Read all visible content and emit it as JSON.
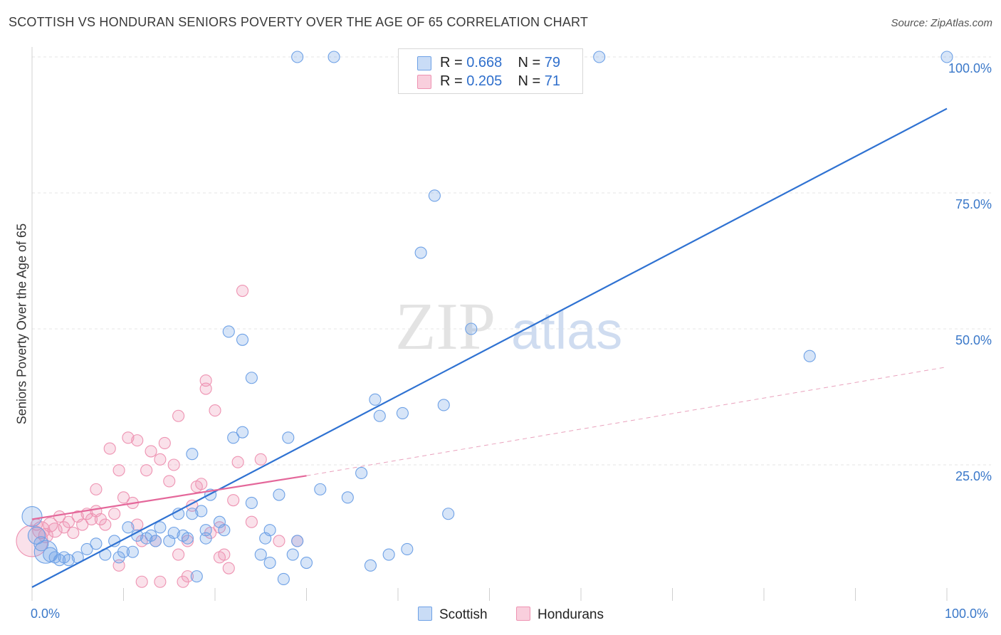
{
  "title": "SCOTTISH VS HONDURAN SENIORS POVERTY OVER THE AGE OF 65 CORRELATION CHART",
  "source": "Source: ZipAtlas.com",
  "watermark": {
    "zip": "ZIP",
    "atlas": "atlas"
  },
  "legend": {
    "rows": [
      {
        "r_label": "R = ",
        "r_value": "0.668",
        "n_label": "N = ",
        "n_value": "79",
        "color": "#6ea1e6"
      },
      {
        "r_label": "R = ",
        "r_value": "0.205",
        "n_label": "N = ",
        "n_value": "71",
        "color": "#ee93b2"
      }
    ]
  },
  "bottom_legend": {
    "scottish": "Scottish",
    "hondurans": "Hondurans"
  },
  "chart_data": {
    "type": "scatter",
    "xlabel": "",
    "ylabel": "Seniors Poverty Over the Age of 65",
    "xlim": [
      0,
      100
    ],
    "ylim": [
      0,
      100
    ],
    "x_tick_labels": {
      "min": "0.0%",
      "max": "100.0%"
    },
    "y_ticks": [
      25,
      50,
      75,
      100
    ],
    "y_tick_labels": [
      "25.0%",
      "50.0%",
      "75.0%",
      "100.0%"
    ],
    "grid": true,
    "legend_position": "top-center",
    "series": [
      {
        "name": "Scottish",
        "color": "#6ea1e6",
        "trend": {
          "x0": 0,
          "y0": 2.5,
          "x1": 100,
          "y1": 90.5,
          "style": "solid"
        },
        "points": [
          [
            0,
            15.5,
            14
          ],
          [
            0.5,
            12,
            12
          ],
          [
            1,
            10.5,
            10
          ],
          [
            1.5,
            9,
            16
          ],
          [
            2,
            8.5,
            10
          ],
          [
            2.5,
            8,
            8
          ],
          [
            3,
            7.5,
            8
          ],
          [
            3.5,
            8,
            8
          ],
          [
            4,
            7.5,
            8
          ],
          [
            5,
            8,
            8
          ],
          [
            6,
            9.5,
            8
          ],
          [
            7,
            10.5,
            8
          ],
          [
            8,
            8.5,
            8
          ],
          [
            9,
            11,
            8
          ],
          [
            9.5,
            8,
            8
          ],
          [
            10,
            9,
            8
          ],
          [
            10.5,
            13.5,
            8
          ],
          [
            11,
            9,
            8
          ],
          [
            11.5,
            12,
            8
          ],
          [
            12.5,
            11.5,
            8
          ],
          [
            13,
            12,
            8
          ],
          [
            13.5,
            11,
            8
          ],
          [
            14,
            13.5,
            8
          ],
          [
            15,
            11,
            8
          ],
          [
            15.5,
            12.5,
            8
          ],
          [
            16,
            16,
            8
          ],
          [
            16.5,
            12,
            8
          ],
          [
            17,
            11.5,
            8
          ],
          [
            17.5,
            16,
            8
          ],
          [
            17.5,
            27,
            8
          ],
          [
            18,
            4.5,
            8
          ],
          [
            18.5,
            16.5,
            8
          ],
          [
            19,
            13,
            8
          ],
          [
            19,
            11.5,
            8
          ],
          [
            19.5,
            19.5,
            8
          ],
          [
            20.5,
            14.5,
            8
          ],
          [
            21,
            13,
            8
          ],
          [
            21.5,
            49.5,
            8
          ],
          [
            22,
            30,
            8
          ],
          [
            23,
            48,
            8
          ],
          [
            23,
            31,
            8
          ],
          [
            24,
            41,
            8
          ],
          [
            24,
            18,
            8
          ],
          [
            25,
            8.5,
            8
          ],
          [
            25.5,
            11.5,
            8
          ],
          [
            26,
            13,
            8
          ],
          [
            26,
            7,
            8
          ],
          [
            27,
            19.5,
            8
          ],
          [
            27.5,
            4,
            8
          ],
          [
            28,
            30,
            8
          ],
          [
            28.5,
            8.5,
            8
          ],
          [
            29,
            11,
            8
          ],
          [
            30,
            7,
            8
          ],
          [
            31.5,
            20.5,
            8
          ],
          [
            33,
            100,
            8
          ],
          [
            34.5,
            19,
            8
          ],
          [
            36,
            23.5,
            8
          ],
          [
            37.5,
            37,
            8
          ],
          [
            38,
            34,
            8
          ],
          [
            39,
            8.5,
            8
          ],
          [
            40.5,
            34.5,
            8
          ],
          [
            41,
            9.5,
            8
          ],
          [
            37,
            6.5,
            8
          ],
          [
            42.5,
            64,
            8
          ],
          [
            44,
            74.5,
            8
          ],
          [
            45,
            36,
            8
          ],
          [
            45.5,
            16,
            8
          ],
          [
            48,
            50,
            8
          ],
          [
            29,
            100,
            8
          ],
          [
            51,
            100,
            8
          ],
          [
            62,
            100,
            8
          ],
          [
            85,
            45,
            8
          ],
          [
            100,
            100,
            8
          ]
        ]
      },
      {
        "name": "Hondurans",
        "color": "#ee93b2",
        "trend": {
          "x0": 0,
          "y0": 15,
          "x1": 30,
          "y1": 23,
          "style": "solid"
        },
        "trend_ext": {
          "x0": 30,
          "y0": 23,
          "x1": 100,
          "y1": 43,
          "style": "dashed"
        },
        "points": [
          [
            0,
            11,
            22
          ],
          [
            0.5,
            14,
            8
          ],
          [
            1,
            13,
            12
          ],
          [
            1.5,
            12,
            10
          ],
          [
            2,
            14,
            10
          ],
          [
            2.5,
            13,
            10
          ],
          [
            3,
            15.5,
            8
          ],
          [
            3.5,
            13.5,
            8
          ],
          [
            4,
            14.5,
            8
          ],
          [
            4.5,
            12.5,
            8
          ],
          [
            5,
            15.5,
            8
          ],
          [
            5.5,
            14,
            8
          ],
          [
            6,
            16,
            8
          ],
          [
            6.5,
            15,
            8
          ],
          [
            7,
            20.5,
            8
          ],
          [
            7,
            16.5,
            8
          ],
          [
            7.5,
            15,
            8
          ],
          [
            8,
            14,
            8
          ],
          [
            8.5,
            28,
            8
          ],
          [
            9,
            16,
            8
          ],
          [
            9.5,
            24,
            8
          ],
          [
            9.5,
            6.5,
            8
          ],
          [
            10,
            19,
            8
          ],
          [
            10.5,
            30,
            8
          ],
          [
            11,
            18,
            8
          ],
          [
            11.5,
            14,
            8
          ],
          [
            11.5,
            29.5,
            8
          ],
          [
            12,
            11,
            8
          ],
          [
            12.5,
            24,
            8
          ],
          [
            13,
            27.5,
            8
          ],
          [
            13.5,
            11,
            8
          ],
          [
            14,
            26,
            8
          ],
          [
            14.5,
            29,
            8
          ],
          [
            15,
            22,
            8
          ],
          [
            15.5,
            25,
            8
          ],
          [
            16,
            34,
            8
          ],
          [
            16,
            8.5,
            8
          ],
          [
            16.5,
            3.5,
            8
          ],
          [
            17,
            11,
            8
          ],
          [
            17.5,
            17.5,
            8
          ],
          [
            18,
            21,
            8
          ],
          [
            18.5,
            21.5,
            8
          ],
          [
            19,
            40.5,
            8
          ],
          [
            19,
            39,
            8
          ],
          [
            19.5,
            12.5,
            8
          ],
          [
            20,
            35,
            8
          ],
          [
            20.5,
            13.5,
            8
          ],
          [
            21,
            8.5,
            8
          ],
          [
            21.5,
            6,
            8
          ],
          [
            22,
            18.5,
            8
          ],
          [
            22.5,
            25.5,
            8
          ],
          [
            23,
            57,
            8
          ],
          [
            24,
            14.5,
            8
          ],
          [
            25,
            26,
            8
          ],
          [
            27,
            11,
            8
          ],
          [
            29,
            11,
            8
          ],
          [
            20.5,
            8,
            8
          ],
          [
            12,
            3.5,
            8
          ],
          [
            14,
            3.5,
            8
          ],
          [
            17,
            4.5,
            8
          ]
        ]
      }
    ]
  }
}
